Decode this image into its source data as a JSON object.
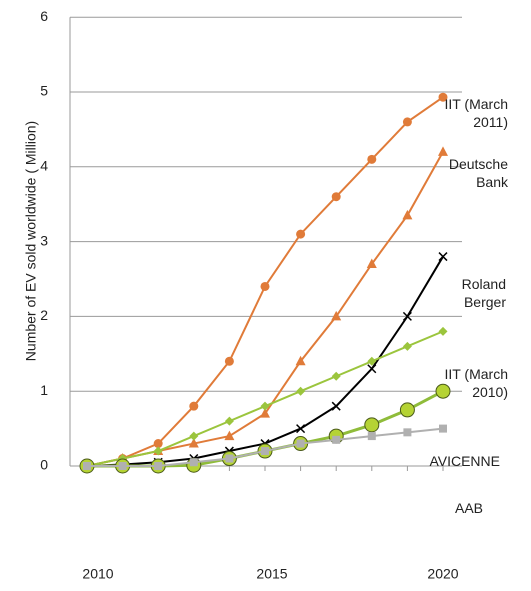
{
  "chart_data": {
    "type": "line",
    "y_label": "Number of EV sold worldwide ( Million)",
    "categories": [
      "2010",
      null,
      null,
      null,
      null,
      "2015",
      null,
      null,
      null,
      null,
      "2020"
    ],
    "ylim": [
      0,
      6
    ],
    "yticks": [
      0,
      1,
      2,
      3,
      4,
      5,
      6
    ],
    "grid": true,
    "series": [
      {
        "name": "IIT (March 2011)",
        "color": "#e07b39",
        "marker": "circle",
        "values": [
          0,
          0.1,
          0.3,
          0.8,
          1.4,
          2.4,
          3.1,
          3.6,
          4.1,
          4.6,
          4.93
        ]
      },
      {
        "name": "Deutsche Bank",
        "color": "#e07b39",
        "marker": "triangle",
        "values": [
          0,
          0.1,
          0.2,
          0.3,
          0.4,
          0.7,
          1.4,
          2.0,
          2.7,
          3.35,
          4.2
        ]
      },
      {
        "name": "Roland Berger",
        "color": "#000000",
        "marker": "x",
        "values": [
          0,
          0.02,
          0.05,
          0.1,
          0.2,
          0.3,
          0.5,
          0.8,
          1.3,
          2.0,
          2.8
        ]
      },
      {
        "name": "IIT (March 2010)",
        "color": "#9bc53d",
        "marker": "diamond",
        "values": [
          0,
          0.1,
          0.2,
          0.4,
          0.6,
          0.8,
          1.0,
          1.2,
          1.4,
          1.6,
          1.8
        ]
      },
      {
        "name": "AVICENNE",
        "color": "#8fbc3a",
        "marker": "bigcircle",
        "values": [
          0,
          0,
          0,
          0.01,
          0.1,
          0.2,
          0.3,
          0.4,
          0.55,
          0.75,
          1.0
        ]
      },
      {
        "name": "AAB",
        "color": "#b0b0b0",
        "marker": "square",
        "values": [
          0,
          0,
          0,
          0.05,
          0.1,
          0.2,
          0.3,
          0.35,
          0.4,
          0.45,
          0.5
        ]
      }
    ]
  }
}
